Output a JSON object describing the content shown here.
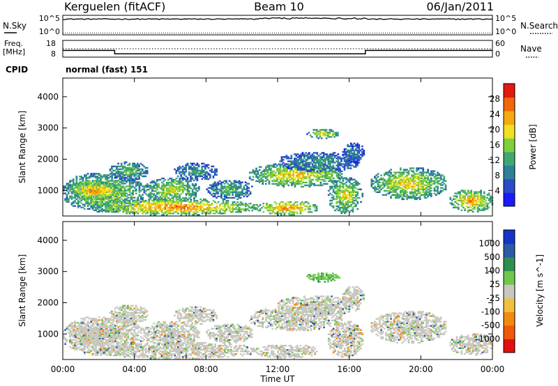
{
  "header": {
    "station": "Kerguelen (fitACF)",
    "beam": "Beam 10",
    "date": "06/Jan/2011"
  },
  "chart_data": {
    "type": "heatmap",
    "xlabel": "Time UT",
    "x_ticks": [
      "00:00",
      "04:00",
      "08:00",
      "12:00",
      "16:00",
      "20:00",
      "00:00"
    ],
    "xlim_hours": [
      0,
      24
    ],
    "noise_panel": {
      "left_label": "N.Sky",
      "left_ticks": [
        "10^5",
        "10^0"
      ],
      "right_label": "N.Search",
      "right_ticks": [
        "10^5",
        "10^0"
      ],
      "sky_level": 10000,
      "search_level": 3
    },
    "freq_panel": {
      "left_label_line1": "Freq.",
      "left_label_line2": "[MHz]",
      "left_ticks": [
        18,
        8
      ],
      "right_label": "Nave",
      "right_ticks": [
        60,
        0
      ],
      "freq_segments": [
        {
          "start": 0,
          "end": 2.9,
          "value": 12
        },
        {
          "start": 2.9,
          "end": 16.9,
          "value": 10
        },
        {
          "start": 16.9,
          "end": 24,
          "value": 12
        }
      ],
      "nave_level": 30
    },
    "cpid": {
      "label": "CPID",
      "text": "normal (fast) 151"
    },
    "power_panel": {
      "ylabel": "Slant Range [km]",
      "ylim": [
        180,
        4600
      ],
      "y_ticks": [
        1000,
        2000,
        3000,
        4000
      ],
      "colorbar_label": "Power [dB]",
      "colorbar_ticks": [
        "4",
        "8",
        "12",
        "16",
        "20",
        "24",
        "28"
      ],
      "colorbar_range": [
        0,
        32
      ]
    },
    "velocity_panel": {
      "ylabel": "Slant Range [km]",
      "ylim": [
        180,
        4600
      ],
      "y_ticks": [
        1000,
        2000,
        3000,
        4000
      ],
      "colorbar_label": "Velocity [m s^-1]",
      "colorbar_ticks": [
        "1000",
        "500",
        "100",
        "25",
        "-25",
        "-100",
        "-500",
        "-1000"
      ]
    },
    "echo_regions": [
      {
        "t0": 0.0,
        "t1": 4.5,
        "r0": 300,
        "r1": 1550,
        "power": 20,
        "vel": "low"
      },
      {
        "t0": 0.4,
        "t1": 3.2,
        "r0": 700,
        "r1": 1250,
        "power": 27,
        "vel": "low"
      },
      {
        "t0": 2.6,
        "t1": 4.7,
        "r0": 1300,
        "r1": 1900,
        "power": 16,
        "vel": "low"
      },
      {
        "t0": 4.5,
        "t1": 7.6,
        "r0": 600,
        "r1": 1400,
        "power": 20,
        "vel": "low"
      },
      {
        "t0": 6.2,
        "t1": 8.6,
        "r0": 1300,
        "r1": 1850,
        "power": 13,
        "vel": "low"
      },
      {
        "t0": 1.8,
        "t1": 10.8,
        "r0": 200,
        "r1": 700,
        "power": 27,
        "vel": "low"
      },
      {
        "t0": 8.0,
        "t1": 10.6,
        "r0": 700,
        "r1": 1300,
        "power": 15,
        "vel": "low"
      },
      {
        "t0": 10.4,
        "t1": 15.6,
        "r0": 1100,
        "r1": 1850,
        "power": 23,
        "vel": "low"
      },
      {
        "t0": 10.8,
        "t1": 14.2,
        "r0": 200,
        "r1": 650,
        "power": 27,
        "vel": "low"
      },
      {
        "t0": 12.0,
        "t1": 16.6,
        "r0": 1600,
        "r1": 2200,
        "power": 12,
        "vel": "low"
      },
      {
        "t0": 13.6,
        "t1": 15.4,
        "r0": 2650,
        "r1": 2950,
        "power": 22,
        "vel": "pos"
      },
      {
        "t0": 14.8,
        "t1": 16.7,
        "r0": 250,
        "r1": 1400,
        "power": 21,
        "vel": "low"
      },
      {
        "t0": 15.6,
        "t1": 16.8,
        "r0": 1900,
        "r1": 2500,
        "power": 11,
        "vel": "low"
      },
      {
        "t0": 17.2,
        "t1": 21.4,
        "r0": 700,
        "r1": 1700,
        "power": 22,
        "vel": "low"
      },
      {
        "t0": 21.6,
        "t1": 24.0,
        "r0": 300,
        "r1": 1000,
        "power": 25,
        "vel": "low"
      }
    ]
  }
}
